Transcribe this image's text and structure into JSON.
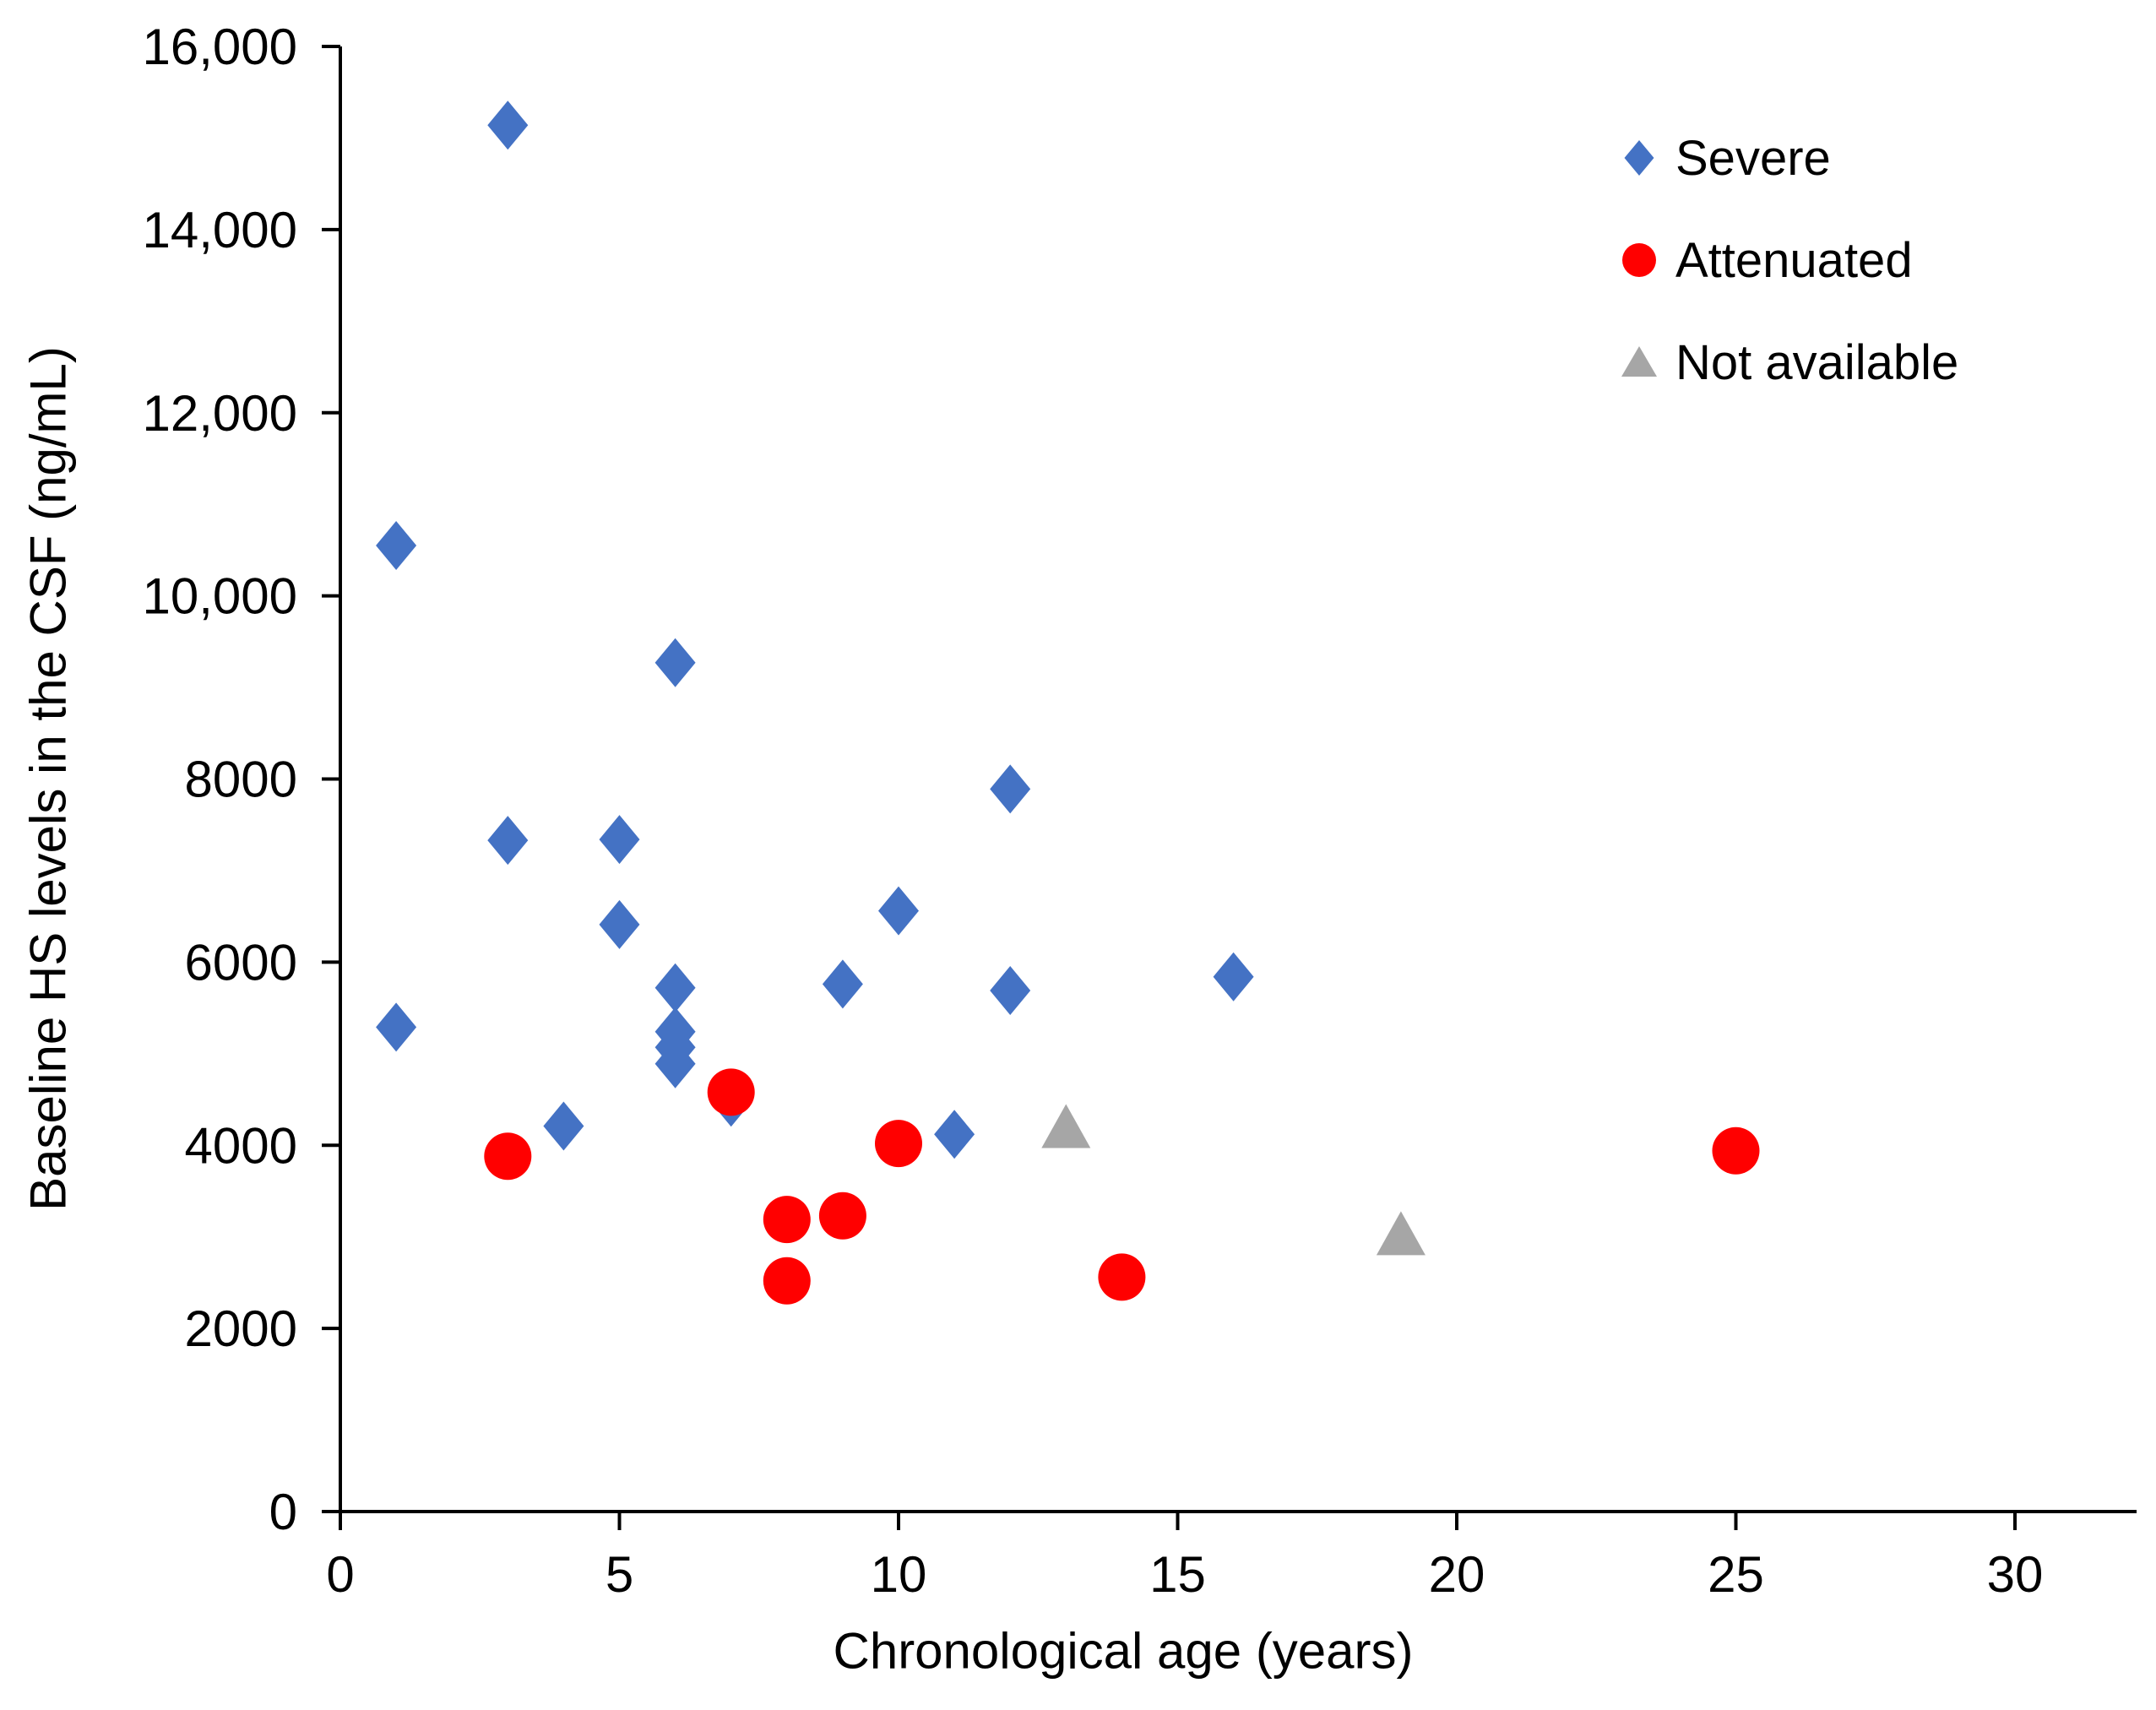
{
  "chart_data": {
    "type": "scatter",
    "xlabel": "Chronological age (years)",
    "ylabel": "Baseline HS levels in the CSF (ng/mL)",
    "xlim": [
      0,
      32.2
    ],
    "ylim": [
      0,
      16000
    ],
    "xticks": [
      0,
      5,
      10,
      15,
      20,
      25,
      30
    ],
    "yticks": [
      0,
      2000,
      4000,
      6000,
      8000,
      10000,
      12000,
      14000,
      16000
    ],
    "ytick_labels": [
      "0",
      "2000",
      "4000",
      "6000",
      "8000",
      "10,000",
      "12,000",
      "14,000",
      "16,000"
    ],
    "grid": false,
    "legend_position": "inside-top-right",
    "axis_color": "#000000",
    "series": [
      {
        "name": "Severe",
        "marker": "diamond",
        "color": "#4472C4",
        "points": [
          [
            1,
            10550
          ],
          [
            1,
            5290
          ],
          [
            3,
            15140
          ],
          [
            3,
            7330
          ],
          [
            4,
            4210
          ],
          [
            5,
            7340
          ],
          [
            5,
            6410
          ],
          [
            6,
            9270
          ],
          [
            6,
            5720
          ],
          [
            6,
            5240
          ],
          [
            6,
            5070
          ],
          [
            6,
            4890
          ],
          [
            7,
            4470
          ],
          [
            9,
            5760
          ],
          [
            10,
            6560
          ],
          [
            11,
            4120
          ],
          [
            12,
            7890
          ],
          [
            12,
            5690
          ],
          [
            16,
            5840
          ]
        ]
      },
      {
        "name": "Attenuated",
        "marker": "circle",
        "color": "#FF0000",
        "points": [
          [
            3,
            3880
          ],
          [
            7,
            4580
          ],
          [
            8,
            3190
          ],
          [
            8,
            2520
          ],
          [
            9,
            3230
          ],
          [
            10,
            4020
          ],
          [
            14,
            2560
          ],
          [
            25,
            3940
          ]
        ]
      },
      {
        "name": "Not available",
        "marker": "triangle",
        "color": "#A6A6A6",
        "points": [
          [
            13,
            4210
          ],
          [
            19,
            3040
          ]
        ]
      }
    ]
  }
}
